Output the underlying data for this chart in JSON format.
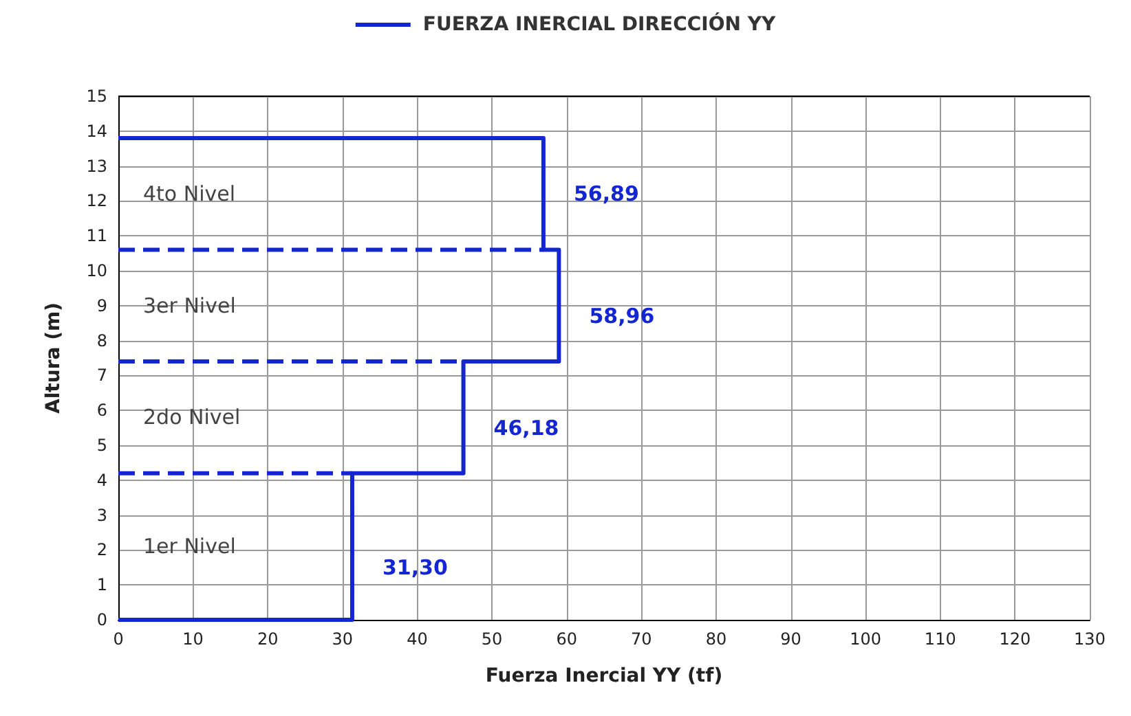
{
  "chart_data": {
    "type": "line",
    "xlabel": "Fuerza Inercial YY (tf)",
    "ylabel": "Altura (m)",
    "series": [
      {
        "name": "FUERZA INERCIAL DIRECCIÓN YY",
        "color": "#1426d2",
        "line_style": "solid",
        "x": [
          0,
          31.3,
          31.3,
          46.18,
          46.18,
          58.96,
          58.96,
          56.89,
          56.89,
          0
        ],
        "values": [
          0,
          0,
          4.2,
          4.2,
          7.4,
          7.4,
          10.6,
          10.6,
          13.8,
          13.8
        ]
      },
      {
        "color": "#1426d2",
        "line_style": "dashed",
        "x": [
          0,
          31.3
        ],
        "values": [
          4.2,
          4.2
        ]
      },
      {
        "color": "#1426d2",
        "line_style": "dashed",
        "x": [
          0,
          46.18
        ],
        "values": [
          7.4,
          7.4
        ]
      },
      {
        "color": "#1426d2",
        "line_style": "dashed",
        "x": [
          0,
          56.89
        ],
        "values": [
          10.6,
          10.6
        ]
      }
    ],
    "annotations": [
      "1er Nivel",
      "2do Nivel",
      "3er Nivel",
      "4to Nivel",
      {
        "text": "31,30",
        "x": 31.3,
        "y": 1.5
      },
      {
        "text": "46,18",
        "x": 46.18,
        "y": 5.5
      },
      {
        "text": "58,96",
        "x": 58.96,
        "y": 8.7
      },
      {
        "text": "56,89",
        "x": 56.89,
        "y": 12.2
      }
    ],
    "xlim": [
      0,
      130
    ],
    "xticks": [
      0,
      10,
      20,
      30,
      40,
      50,
      60,
      70,
      80,
      90,
      100,
      110,
      120,
      130
    ],
    "ylim": [
      0,
      15
    ],
    "yticks": [
      0,
      1,
      2,
      3,
      4,
      5,
      6,
      7,
      8,
      9,
      10,
      11,
      12,
      13,
      14,
      15
    ],
    "grid": true,
    "legend": "top"
  }
}
